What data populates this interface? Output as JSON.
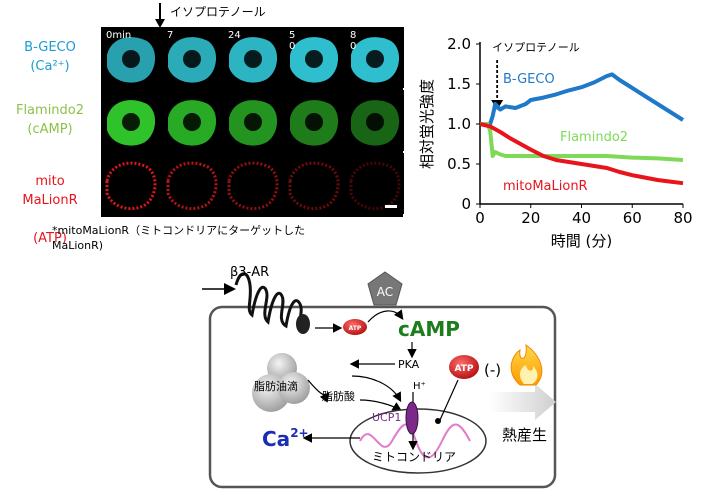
{
  "microscopy": {
    "stimulus_label": "イソプロテノール",
    "rows": [
      {
        "name": "B-GECO",
        "target": "(Ca²⁺)",
        "color": "#1a9bd4",
        "tint": "#32c8d8"
      },
      {
        "name": "Flamindo2",
        "target": "(cAMP)",
        "color": "#8bc34a",
        "tint": "#2fc22a"
      },
      {
        "name": "mito\nMaLionR",
        "target": "(ATP)",
        "color": "#e8141c",
        "tint": "#e0141a"
      }
    ],
    "time_labels": [
      "0min",
      "7",
      "24",
      "5\n0",
      "8\n0"
    ],
    "footnote": "*mitoMaLionR（ミトコンドリアにターゲットした\nMaLionR)"
  },
  "chart_data": {
    "type": "line",
    "xlabel": "時間 (分)",
    "ylabel": "相対蛍光強度",
    "xlim": [
      0,
      80
    ],
    "ylim": [
      0,
      2.0
    ],
    "xticks": [
      0,
      20,
      40,
      60,
      80
    ],
    "yticks": [
      0,
      0.5,
      1.0,
      1.5,
      2.0
    ],
    "ytick_labels": [
      "0",
      "0.5",
      "1.0",
      "1.5",
      "2.0"
    ],
    "annotation": "イソプロテノール",
    "annotation_x": 4,
    "series": [
      {
        "name": "B-GECO",
        "color": "#1f78c8",
        "x": [
          0,
          4,
          5,
          6,
          8,
          10,
          14,
          18,
          20,
          25,
          30,
          35,
          40,
          45,
          50,
          52,
          55,
          60,
          65,
          70,
          75,
          80
        ],
        "y": [
          1.0,
          1.0,
          1.1,
          1.25,
          1.18,
          1.22,
          1.2,
          1.25,
          1.3,
          1.33,
          1.37,
          1.42,
          1.46,
          1.52,
          1.6,
          1.62,
          1.55,
          1.45,
          1.35,
          1.25,
          1.15,
          1.05
        ]
      },
      {
        "name": "Flamindo2",
        "color": "#7ed957",
        "x": [
          0,
          3,
          4,
          5,
          6,
          8,
          10,
          20,
          30,
          40,
          50,
          60,
          70,
          80
        ],
        "y": [
          1.0,
          1.0,
          0.92,
          0.6,
          0.65,
          0.62,
          0.6,
          0.6,
          0.6,
          0.6,
          0.6,
          0.58,
          0.57,
          0.55
        ]
      },
      {
        "name": "mitoMaLionR",
        "color": "#e8141c",
        "x": [
          0,
          4,
          8,
          12,
          16,
          20,
          25,
          30,
          40,
          50,
          55,
          60,
          70,
          75,
          80
        ],
        "y": [
          1.0,
          0.97,
          0.9,
          0.82,
          0.75,
          0.68,
          0.6,
          0.55,
          0.5,
          0.45,
          0.4,
          0.36,
          0.3,
          0.28,
          0.26
        ]
      }
    ],
    "series_labels": [
      "B-GECO",
      "Flamindo2",
      "mitoMaLionR"
    ]
  },
  "diagram": {
    "receptor": "β3-AR",
    "ac": "AC",
    "atp_small": "ATP",
    "camp": "cAMP",
    "pka": "PKA",
    "lipid_droplet": "脂肪油滴",
    "fatty_acid": "脂肪酸",
    "proton": "H⁺",
    "ucp1": "UCP1",
    "mitochondria": "ミトコンドリア",
    "calcium": "Ca",
    "calcium_sup": "2+",
    "atp_big": "ATP",
    "atp_minus": "(-)",
    "heat": "熱産生"
  }
}
